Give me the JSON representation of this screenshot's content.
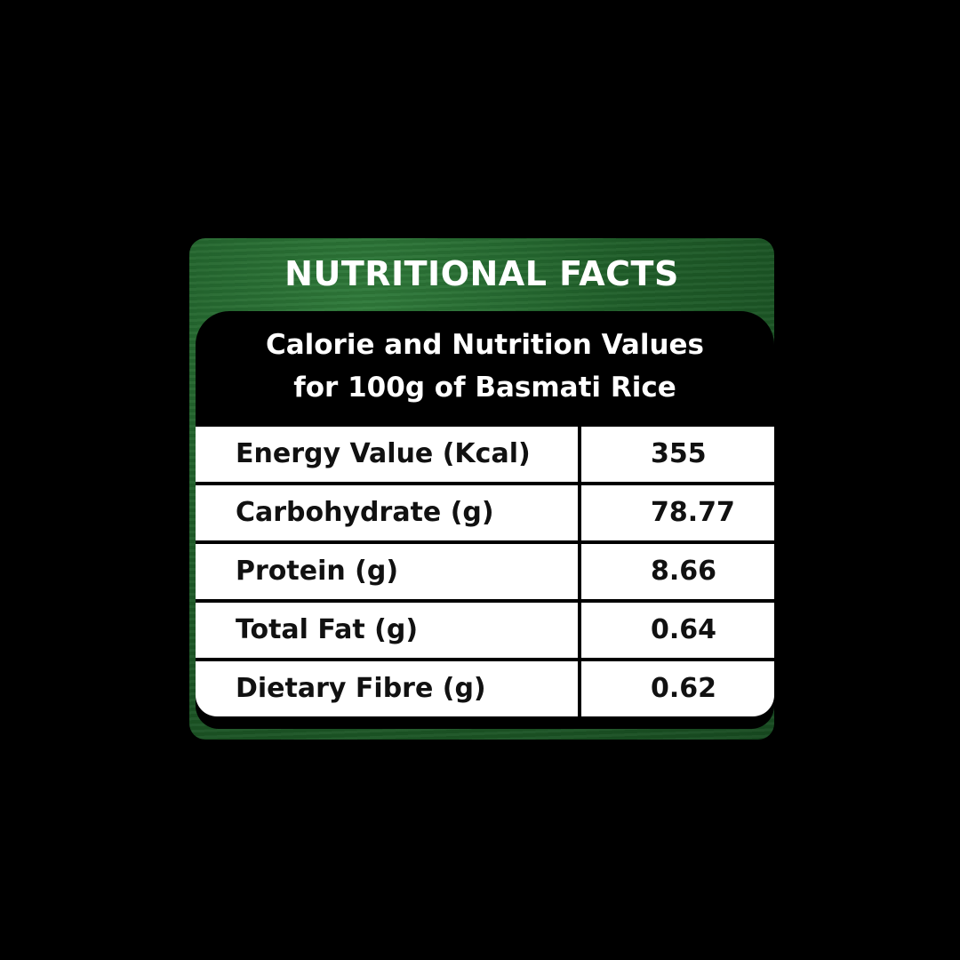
{
  "header": {
    "title": "NUTRITIONAL FACTS"
  },
  "subtitle": {
    "line1": "Calorie and Nutrition Values",
    "line2": "for 100g of Basmati Rice"
  },
  "colors": {
    "card_green": "#1f5e29",
    "inner_black": "#000000",
    "cell_white": "#ffffff"
  },
  "rows": [
    {
      "label": "Energy Value (Kcal)",
      "value": "355"
    },
    {
      "label": "Carbohydrate (g)",
      "value": "78.77"
    },
    {
      "label": "Protein (g)",
      "value": "8.66"
    },
    {
      "label": "Total Fat (g)",
      "value": "0.64"
    },
    {
      "label": "Dietary Fibre (g)",
      "value": "0.62"
    }
  ]
}
